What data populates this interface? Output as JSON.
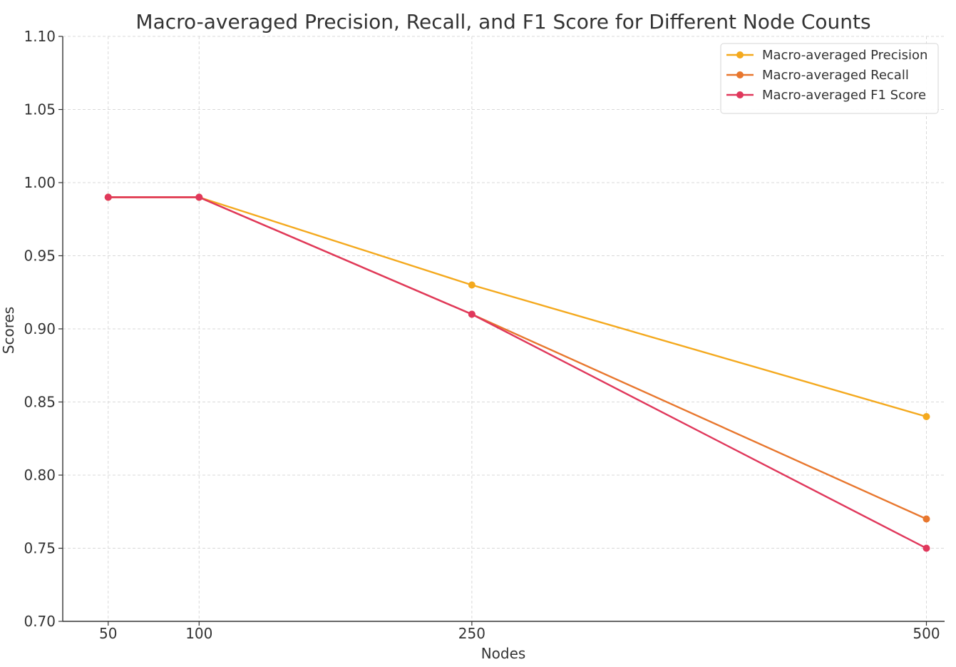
{
  "chart_data": {
    "type": "line",
    "title": "Macro-averaged Precision, Recall, and F1 Score for Different Node Counts",
    "xlabel": "Nodes",
    "ylabel": "Scores",
    "x": [
      50,
      100,
      250,
      500
    ],
    "xticks": [
      "50",
      "100",
      "250",
      "500"
    ],
    "yticks": [
      "0.70",
      "0.75",
      "0.80",
      "0.85",
      "0.90",
      "0.95",
      "1.00",
      "1.05",
      "1.10"
    ],
    "ylim": [
      0.7,
      1.1
    ],
    "xlim": [
      25,
      510
    ],
    "grid": true,
    "legend_position": "top-right",
    "series": [
      {
        "name": "Macro-averaged Precision",
        "color": "#F4A91E",
        "values": [
          0.99,
          0.99,
          0.93,
          0.84
        ]
      },
      {
        "name": "Macro-averaged Recall",
        "color": "#E8772E",
        "values": [
          0.99,
          0.99,
          0.91,
          0.77
        ]
      },
      {
        "name": "Macro-averaged F1 Score",
        "color": "#E0385C",
        "values": [
          0.99,
          0.99,
          0.91,
          0.75
        ]
      }
    ]
  }
}
